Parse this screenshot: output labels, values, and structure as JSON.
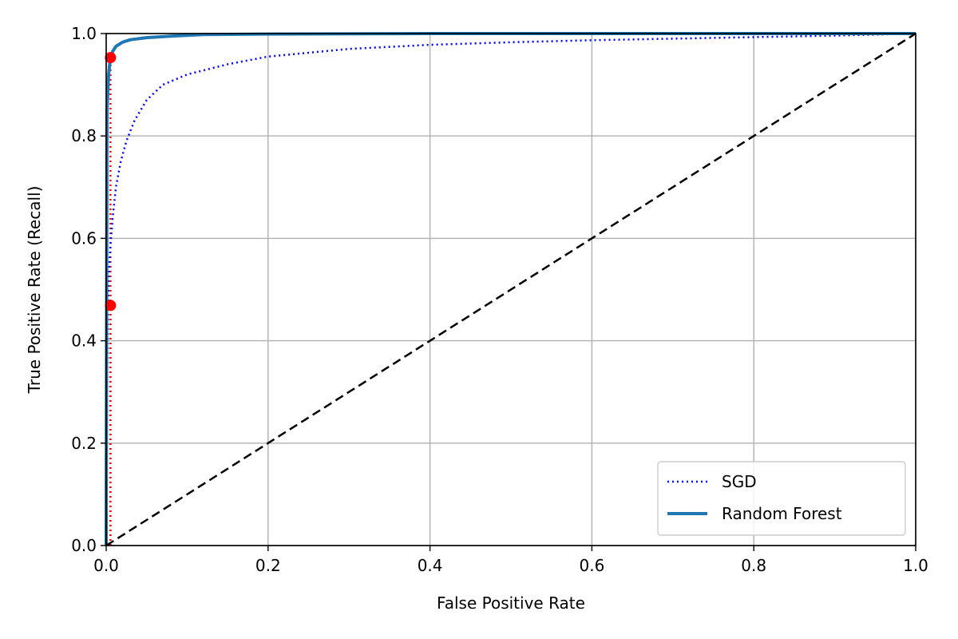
{
  "chart_data": {
    "type": "line",
    "title": "",
    "xlabel": "False Positive Rate",
    "ylabel": "True Positive Rate (Recall)",
    "xlim": [
      0,
      1
    ],
    "ylim": [
      0,
      1
    ],
    "xticks": [
      "0.0",
      "0.2",
      "0.4",
      "0.6",
      "0.8",
      "1.0"
    ],
    "yticks": [
      "0.0",
      "0.2",
      "0.4",
      "0.6",
      "0.8",
      "1.0"
    ],
    "grid": true,
    "legend_position": "lower-right",
    "series": [
      {
        "name": "SGD",
        "style": "dotted",
        "color": "#0000ff",
        "x": [
          0,
          0.001,
          0.002,
          0.003,
          0.005,
          0.008,
          0.012,
          0.018,
          0.025,
          0.035,
          0.05,
          0.07,
          0.1,
          0.15,
          0.2,
          0.3,
          0.4,
          0.5,
          0.6,
          0.7,
          0.8,
          0.9,
          1.0
        ],
        "y": [
          0,
          0.3,
          0.45,
          0.52,
          0.58,
          0.64,
          0.7,
          0.75,
          0.79,
          0.83,
          0.87,
          0.9,
          0.92,
          0.94,
          0.955,
          0.97,
          0.978,
          0.983,
          0.987,
          0.99,
          0.993,
          0.996,
          1.0
        ]
      },
      {
        "name": "Random Forest",
        "style": "solid",
        "color": "#1f77b4",
        "x": [
          0,
          0.001,
          0.003,
          0.005,
          0.008,
          0.012,
          0.02,
          0.03,
          0.05,
          0.08,
          0.12,
          0.2,
          0.4,
          0.6,
          0.8,
          1.0
        ],
        "y": [
          0,
          0.85,
          0.92,
          0.95,
          0.965,
          0.975,
          0.983,
          0.988,
          0.992,
          0.995,
          0.998,
          0.999,
          1.0,
          1.0,
          1.0,
          1.0
        ]
      },
      {
        "name": "",
        "style": "dashed",
        "color": "#000000",
        "x": [
          0,
          1
        ],
        "y": [
          0,
          1
        ]
      }
    ],
    "highlight_points": [
      {
        "x": 0.0053,
        "y": 0.469,
        "color": "#ff0000"
      },
      {
        "x": 0.0053,
        "y": 0.953,
        "color": "#ff0000"
      }
    ],
    "highlight_lines": [
      {
        "x": [
          0.0053,
          0.0053
        ],
        "y": [
          0,
          0.469
        ],
        "color": "#ff0000",
        "style": "dotted"
      },
      {
        "x": [
          0.0053,
          0.0053
        ],
        "y": [
          0,
          0.953
        ],
        "color": "#ff0000",
        "style": "dotted"
      }
    ]
  }
}
